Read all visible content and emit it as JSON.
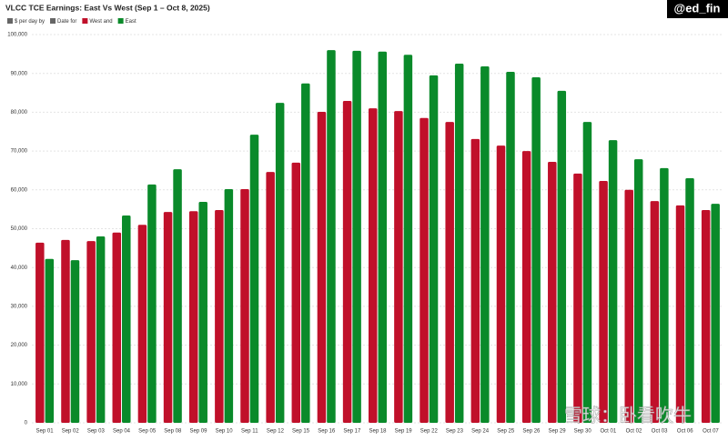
{
  "chart_data": {
    "type": "bar",
    "title": "VLCC TCE Earnings: East Vs West (Sep 1 – Oct 8, 2025)",
    "legend_extra": [
      "$ per day by",
      "Date for"
    ],
    "watermark": "@ed_fin",
    "footer_watermark": "雪球：卧看吹牛",
    "categories": [
      "Sep 01",
      "Sep 02",
      "Sep 03",
      "Sep 04",
      "Sep 05",
      "Sep 08",
      "Sep 09",
      "Sep 10",
      "Sep 11",
      "Sep 12",
      "Sep 15",
      "Sep 16",
      "Sep 17",
      "Sep 18",
      "Sep 19",
      "Sep 22",
      "Sep 23",
      "Sep 24",
      "Sep 25",
      "Sep 26",
      "Sep 29",
      "Sep 30",
      "Oct 01",
      "Oct 02",
      "Oct 03",
      "Oct 06",
      "Oct 07"
    ],
    "series": [
      {
        "name": "West and",
        "color": "#c0102a",
        "values": [
          46400,
          47100,
          46800,
          49000,
          51000,
          54300,
          54500,
          54800,
          60200,
          64600,
          67000,
          80100,
          82900,
          81000,
          80300,
          78500,
          77500,
          73100,
          71400,
          70000,
          67200,
          64200,
          62300,
          60000,
          57100,
          56000,
          54800
        ]
      },
      {
        "name": "East",
        "color": "#0a8a2a",
        "values": [
          42200,
          41900,
          48000,
          53400,
          61400,
          65300,
          56900,
          60200,
          74200,
          82400,
          87400,
          96000,
          95800,
          95600,
          94800,
          89500,
          92500,
          91800,
          90400,
          89000,
          85500,
          77500,
          72800,
          67900,
          65600,
          63000,
          56400
        ]
      }
    ],
    "ylim": [
      0,
      100000
    ],
    "yticks": [
      0,
      {
        "value": 10000,
        "label": "10,000"
      },
      {
        "value": 20000,
        "label": "20,000"
      },
      {
        "value": 30000,
        "label": "30,000"
      },
      {
        "value": 40000,
        "label": "40,000"
      },
      {
        "value": 50000,
        "label": "50,000"
      },
      {
        "value": 60000,
        "label": "60,000"
      },
      {
        "value": 70000,
        "label": "70,000"
      },
      {
        "value": 80000,
        "label": "80,000"
      },
      {
        "value": 90000,
        "label": "90,000"
      },
      {
        "value": 100000,
        "label": "100,000"
      }
    ],
    "grid": true
  }
}
